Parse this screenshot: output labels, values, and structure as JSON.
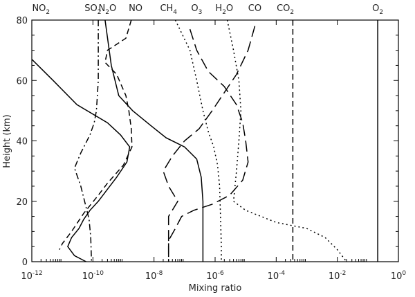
{
  "chart_data": {
    "type": "line",
    "xlabel": "Mixing ratio",
    "ylabel": "Height (km)",
    "x_scale": "log",
    "xlim": [
      1e-12,
      1
    ],
    "ylim": [
      0,
      80
    ],
    "x_ticks": [
      {
        "base": "10",
        "exp": "-12",
        "value": 1e-12
      },
      {
        "base": "10",
        "exp": "-10",
        "value": 1e-10
      },
      {
        "base": "10",
        "exp": "-8",
        "value": 1e-08
      },
      {
        "base": "10",
        "exp": "-6",
        "value": 1e-06
      },
      {
        "base": "10",
        "exp": "-4",
        "value": 0.0001
      },
      {
        "base": "10",
        "exp": "-2",
        "value": 0.01
      },
      {
        "base": "10",
        "exp": "0",
        "value": 1
      }
    ],
    "y_ticks": [
      "0",
      "20",
      "40",
      "60",
      "80"
    ],
    "grid": false,
    "series": [
      {
        "id": "no2",
        "label": "NO",
        "sub": "2",
        "label_x": 2e-12,
        "dash": "solid",
        "points": [
          [
            1e-12,
            67
          ],
          [
            5e-12,
            60
          ],
          [
            3e-11,
            52
          ],
          [
            3e-10,
            46
          ],
          [
            8e-10,
            42
          ],
          [
            1.6e-09,
            38
          ],
          [
            1.3e-09,
            33
          ],
          [
            6e-10,
            28
          ],
          [
            3e-10,
            24
          ],
          [
            1.5e-10,
            20
          ],
          [
            8e-11,
            17
          ],
          [
            5e-11,
            14
          ],
          [
            3.5e-11,
            11
          ],
          [
            2e-11,
            8
          ],
          [
            1.5e-11,
            5
          ],
          [
            2.5e-11,
            2
          ],
          [
            6e-11,
            0
          ]
        ]
      },
      {
        "id": "so2",
        "label": "SO",
        "sub": "2",
        "label_x": 1e-10,
        "dash": "dashdot",
        "points": [
          [
            1.5e-10,
            80
          ],
          [
            1.5e-10,
            60
          ],
          [
            1.3e-10,
            50
          ],
          [
            1.1e-10,
            46
          ],
          [
            8e-11,
            42
          ],
          [
            4e-11,
            36
          ],
          [
            2.5e-11,
            31
          ],
          [
            4e-11,
            25
          ],
          [
            6e-11,
            18
          ],
          [
            7.5e-11,
            14
          ],
          [
            8.5e-11,
            8
          ],
          [
            9e-11,
            0
          ]
        ]
      },
      {
        "id": "n2o",
        "label": "N",
        "sub": "2",
        "label_suffix": "O",
        "label_x": 3e-10,
        "dash": "solid",
        "points": [
          [
            2.5e-10,
            80
          ],
          [
            4e-10,
            65
          ],
          [
            7e-10,
            55
          ],
          [
            2e-09,
            50
          ],
          [
            8e-09,
            45
          ],
          [
            2.5e-08,
            41
          ],
          [
            1e-07,
            38
          ],
          [
            2.5e-07,
            34
          ],
          [
            3.5e-07,
            28
          ],
          [
            4e-07,
            20
          ],
          [
            4e-07,
            10
          ],
          [
            4e-07,
            0
          ]
        ]
      },
      {
        "id": "no",
        "label": "NO",
        "label_x": 2.5e-09,
        "dash": "dash",
        "points": [
          [
            1.8e-09,
            80
          ],
          [
            1.2e-09,
            74
          ],
          [
            3e-10,
            70
          ],
          [
            2.5e-10,
            66
          ],
          [
            6e-10,
            62
          ],
          [
            1.2e-09,
            55
          ],
          [
            1.5e-09,
            50
          ],
          [
            1.8e-09,
            44
          ],
          [
            1.9e-09,
            38
          ],
          [
            1e-09,
            32
          ],
          [
            3e-10,
            26
          ],
          [
            1.5e-10,
            22
          ],
          [
            5e-11,
            16
          ],
          [
            2e-11,
            10
          ],
          [
            1e-11,
            6
          ],
          [
            8e-12,
            4
          ]
        ]
      },
      {
        "id": "ch4",
        "label": "CH",
        "sub": "4",
        "label_x": 3e-08,
        "dash": "dot",
        "points": [
          [
            5e-08,
            80
          ],
          [
            1.5e-07,
            70
          ],
          [
            2.5e-07,
            60
          ],
          [
            4e-07,
            50
          ],
          [
            6e-07,
            43
          ],
          [
            9e-07,
            38
          ],
          [
            1.2e-06,
            32
          ],
          [
            1.4e-06,
            25
          ],
          [
            1.5e-06,
            15
          ],
          [
            1.6e-06,
            5
          ],
          [
            1.6e-06,
            0
          ]
        ]
      },
      {
        "id": "o3",
        "label": "O",
        "sub": "3",
        "label_x": 2.5e-07,
        "dash": "longdash",
        "points": [
          [
            1.5e-07,
            77
          ],
          [
            2.5e-07,
            70
          ],
          [
            6e-07,
            63
          ],
          [
            2e-06,
            58
          ],
          [
            5e-06,
            52
          ],
          [
            8e-06,
            46
          ],
          [
            1e-05,
            40
          ],
          [
            1.2e-05,
            33
          ],
          [
            8e-06,
            27
          ],
          [
            3e-06,
            22
          ],
          [
            8e-07,
            19
          ],
          [
            2e-07,
            17
          ],
          [
            8e-08,
            15
          ],
          [
            5e-08,
            11
          ],
          [
            3e-08,
            7
          ],
          [
            3e-08,
            0
          ]
        ]
      },
      {
        "id": "h2o",
        "label": "H",
        "sub": "2",
        "label_suffix": "O",
        "label_x": 2e-06,
        "dash": "dot",
        "points": [
          [
            2.5e-06,
            80
          ],
          [
            4e-06,
            70
          ],
          [
            6e-06,
            60
          ],
          [
            7e-06,
            50
          ],
          [
            6e-06,
            40
          ],
          [
            5e-06,
            30
          ],
          [
            4e-06,
            20
          ],
          [
            1e-05,
            17
          ],
          [
            0.0001,
            13
          ],
          [
            0.001,
            11
          ],
          [
            0.004,
            8
          ],
          [
            0.01,
            4
          ],
          [
            0.02,
            0
          ]
        ]
      },
      {
        "id": "co",
        "label": "CO",
        "label_x": 2e-05,
        "dash": "longdash",
        "points": [
          [
            2e-05,
            78
          ],
          [
            1.2e-05,
            70
          ],
          [
            5e-06,
            62
          ],
          [
            2e-06,
            56
          ],
          [
            8e-07,
            50
          ],
          [
            3e-07,
            44
          ],
          [
            1e-07,
            40
          ],
          [
            4e-08,
            35
          ],
          [
            2e-08,
            30
          ],
          [
            3e-08,
            25
          ],
          [
            6e-08,
            20
          ],
          [
            3e-08,
            15
          ],
          [
            3e-08,
            0
          ]
        ]
      },
      {
        "id": "co2",
        "label": "CO",
        "sub": "2",
        "label_x": 0.0002,
        "dash": "dash",
        "points": [
          [
            0.00035,
            80
          ],
          [
            0.00035,
            0
          ]
        ]
      },
      {
        "id": "o2",
        "label": "O",
        "sub": "2",
        "label_x": 0.21,
        "dash": "solid",
        "points": [
          [
            0.21,
            80
          ],
          [
            0.21,
            0
          ]
        ]
      }
    ]
  }
}
